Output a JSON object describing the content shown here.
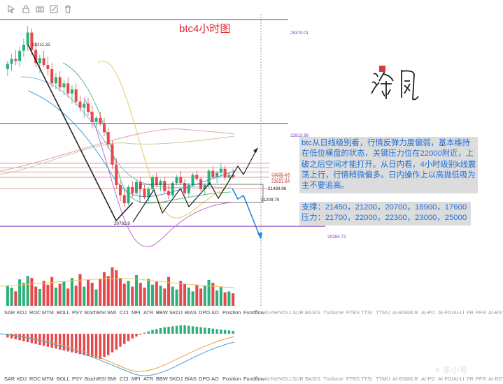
{
  "toolbar": {
    "tools": [
      "cursor-icon",
      "lock-icon",
      "camera-icon",
      "drawing-icon",
      "trash-icon"
    ]
  },
  "chart": {
    "title": "btc4小时图",
    "analysis_text": "btc从日线级别看，行情反弹力度偏弱，基本维持在低位横盘的状态，关键压力位在22000附近，上破之后空间才能打开。从日内看，4小时级别k线震荡上行，行情稍微偏多。日内操作上以高抛低吸为主不要追高。",
    "support_line": "支撑：21450，21200，20700，18900，17600",
    "resistance_line": "压力：21700，22000，22300，23000，25000",
    "price_labels": {
      "top_line": "25370.01",
      "peak": "25211.32",
      "mid_line": "22813.96",
      "r1": "21835.64",
      "r2": "21725.17",
      "r3": "21621.84",
      "current": "21489.96",
      "s1": "21209.70",
      "low": "20761.9",
      "bottom_line": "20284.72"
    },
    "colors": {
      "up": "#2bb07a",
      "down": "#e8474c",
      "horizontal_line": "#7b2fbe",
      "arrow": "#1e88e5",
      "trend": "#222222"
    }
  },
  "chart_data": {
    "type": "candlestick",
    "ylim": [
      20150,
      25700
    ],
    "reference_lines": [
      25370.01,
      22813.96,
      21835.64,
      21725.17,
      21621.84,
      21489.96,
      21209.7,
      20284.72
    ],
    "candles": [
      [
        24150,
        24350,
        23980,
        24280
      ],
      [
        24280,
        24520,
        24100,
        24400
      ],
      [
        24400,
        24620,
        24250,
        24350
      ],
      [
        24350,
        24700,
        24200,
        24600
      ],
      [
        24600,
        24900,
        24450,
        24750
      ],
      [
        24750,
        25211,
        24600,
        25050
      ],
      [
        25050,
        25150,
        24500,
        24620
      ],
      [
        24620,
        24800,
        24200,
        24300
      ],
      [
        24300,
        24500,
        24050,
        24420
      ],
      [
        24420,
        24600,
        24200,
        24250
      ],
      [
        24250,
        24450,
        24000,
        24150
      ],
      [
        24150,
        24300,
        23700,
        23800
      ],
      [
        23800,
        24050,
        23650,
        23950
      ],
      [
        23950,
        24100,
        23600,
        23700
      ],
      [
        23700,
        23900,
        23500,
        23800
      ],
      [
        23800,
        23950,
        23450,
        23550
      ],
      [
        23550,
        23750,
        23300,
        23650
      ],
      [
        23650,
        23800,
        23250,
        23350
      ],
      [
        23350,
        23500,
        23100,
        23200
      ],
      [
        23200,
        23400,
        22950,
        23300
      ],
      [
        23300,
        23450,
        23000,
        23100
      ],
      [
        23100,
        23250,
        22700,
        22850
      ],
      [
        22850,
        23000,
        22700,
        22950
      ],
      [
        22950,
        23100,
        22750,
        22800
      ],
      [
        22800,
        22950,
        22500,
        22600
      ],
      [
        22600,
        22700,
        22200,
        22300
      ],
      [
        22300,
        22400,
        21700,
        21800
      ],
      [
        21800,
        21950,
        21200,
        21300
      ],
      [
        21300,
        21400,
        20900,
        21050
      ],
      [
        21050,
        21200,
        20761.9,
        20850
      ],
      [
        20850,
        21300,
        20800,
        21250
      ],
      [
        21250,
        21400,
        21000,
        21100
      ],
      [
        21100,
        21450,
        21050,
        21380
      ],
      [
        21380,
        21500,
        21150,
        21200
      ],
      [
        21200,
        21300,
        20950,
        21000
      ],
      [
        21000,
        21250,
        20900,
        21200
      ],
      [
        21200,
        21550,
        21150,
        21500
      ],
      [
        21500,
        21600,
        21250,
        21300
      ],
      [
        21300,
        21450,
        21150,
        21400
      ],
      [
        21400,
        21500,
        21100,
        21150
      ],
      [
        21150,
        21300,
        20950,
        21050
      ],
      [
        21050,
        21400,
        21000,
        21350
      ],
      [
        21350,
        21550,
        21300,
        21500
      ],
      [
        21500,
        21650,
        21300,
        21350
      ],
      [
        21350,
        21450,
        21050,
        21100
      ],
      [
        21100,
        21350,
        21000,
        21300
      ],
      [
        21300,
        21600,
        21250,
        21550
      ],
      [
        21550,
        21650,
        21400,
        21450
      ],
      [
        21450,
        21500,
        21150,
        21200
      ],
      [
        21200,
        21350,
        21050,
        21300
      ],
      [
        21300,
        21700,
        21250,
        21650
      ],
      [
        21650,
        21750,
        21450,
        21500
      ],
      [
        21500,
        21650,
        21350,
        21600
      ],
      [
        21600,
        21835,
        21500,
        21700
      ],
      [
        21700,
        21780,
        21420,
        21480
      ],
      [
        21480,
        21600,
        21380,
        21550
      ],
      [
        21550,
        21700,
        21450,
        21489.96
      ]
    ],
    "volume": [
      42,
      38,
      30,
      55,
      48,
      62,
      58,
      40,
      35,
      52,
      44,
      60,
      38,
      46,
      50,
      36,
      58,
      42,
      66,
      40,
      54,
      48,
      34,
      56,
      70,
      62,
      80,
      74,
      58,
      46,
      52,
      40,
      64,
      48,
      38,
      56,
      44,
      50,
      42,
      36,
      60,
      40,
      34,
      52,
      46,
      38,
      30,
      44,
      36,
      42,
      54,
      48,
      32,
      40,
      28,
      30,
      26
    ],
    "oscillator": [
      -8,
      -10,
      -12,
      -14,
      -16,
      -18,
      -20,
      -22,
      -24,
      -26,
      -28,
      -30,
      -32,
      -34,
      -36,
      -38,
      -40,
      -42,
      -44,
      -46,
      -48,
      -50,
      -52,
      -54,
      -50,
      -46,
      -40,
      -34,
      -28,
      -22,
      -16,
      -10,
      -6,
      -2,
      2,
      5,
      8,
      10,
      12,
      14,
      15,
      16,
      17,
      18,
      18,
      17,
      16,
      15,
      14,
      13,
      12,
      11,
      10,
      9,
      8,
      7,
      6
    ],
    "indicator_tabs": [
      "SAR",
      "KDJ",
      "ROC",
      "MTM",
      "BOLL",
      "PSY",
      "StochRSI",
      "SMI",
      "CCI",
      "MFI",
      "ATR",
      "BBW",
      "SKDJ",
      "BIAS",
      "DPO",
      "AO",
      "Position",
      "Fundflow",
      "AI-NetVOL",
      "LSUR",
      "BASIS",
      "TVolume",
      "FTBS",
      "TTSI",
      "TTMU",
      "AI-BSI",
      "MLR",
      "AI-PD",
      "AI-FDI",
      "AI-LI",
      "FR",
      "PFR",
      "AI-BST"
    ]
  }
}
